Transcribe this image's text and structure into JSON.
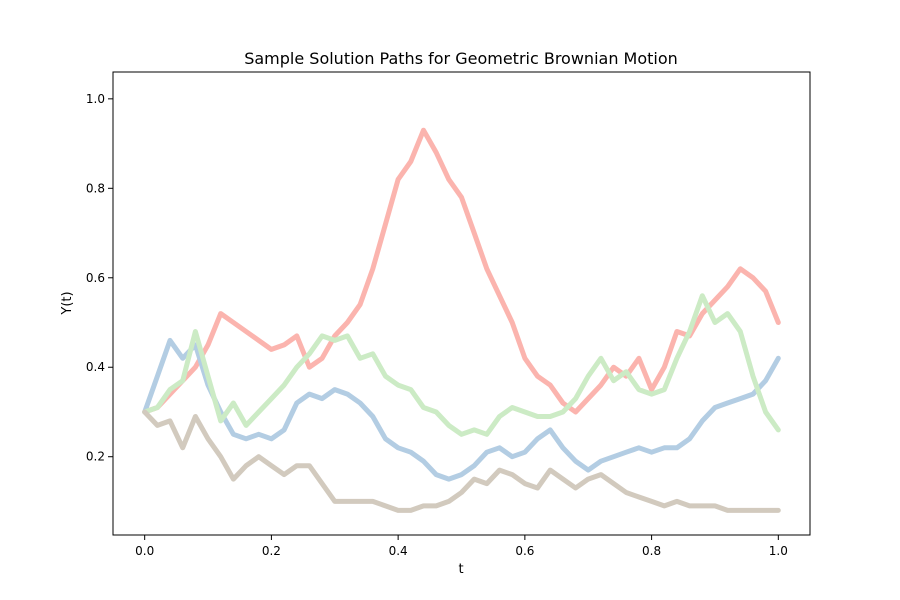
{
  "chart_data": {
    "type": "line",
    "title": "Sample Solution Paths for Geometric Brownian Motion",
    "xlabel": "t",
    "ylabel": "Y(t)",
    "xlim": [
      -0.05,
      1.05
    ],
    "ylim": [
      0.025,
      1.06
    ],
    "xticks": [
      "0.0",
      "0.2",
      "0.4",
      "0.6",
      "0.8",
      "1.0"
    ],
    "yticks": [
      "0.2",
      "0.4",
      "0.6",
      "0.8",
      "1.0"
    ],
    "grid": false,
    "x": [
      0.0,
      0.02,
      0.04,
      0.06,
      0.08,
      0.1,
      0.12,
      0.14,
      0.16,
      0.18,
      0.2,
      0.22,
      0.24,
      0.26,
      0.28,
      0.3,
      0.32,
      0.34,
      0.36,
      0.38,
      0.4,
      0.42,
      0.44,
      0.46,
      0.48,
      0.5,
      0.52,
      0.54,
      0.56,
      0.58,
      0.6,
      0.62,
      0.64,
      0.66,
      0.68,
      0.7,
      0.72,
      0.74,
      0.76,
      0.78,
      0.8,
      0.82,
      0.84,
      0.86,
      0.88,
      0.9,
      0.92,
      0.94,
      0.96,
      0.98,
      1.0
    ],
    "series": [
      {
        "color": "#fbb4ae",
        "values": [
          0.3,
          0.31,
          0.34,
          0.37,
          0.4,
          0.45,
          0.52,
          0.5,
          0.48,
          0.46,
          0.44,
          0.45,
          0.47,
          0.4,
          0.42,
          0.47,
          0.5,
          0.54,
          0.62,
          0.72,
          0.82,
          0.86,
          0.93,
          0.88,
          0.82,
          0.78,
          0.7,
          0.62,
          0.56,
          0.5,
          0.42,
          0.38,
          0.36,
          0.32,
          0.3,
          0.33,
          0.36,
          0.4,
          0.38,
          0.42,
          0.35,
          0.4,
          0.48,
          0.47,
          0.52,
          0.55,
          0.58,
          0.62,
          0.6,
          0.57,
          0.5
        ]
      },
      {
        "color": "#b3cde3",
        "values": [
          0.3,
          0.38,
          0.46,
          0.42,
          0.45,
          0.36,
          0.3,
          0.25,
          0.24,
          0.25,
          0.24,
          0.26,
          0.32,
          0.34,
          0.33,
          0.35,
          0.34,
          0.32,
          0.29,
          0.24,
          0.22,
          0.21,
          0.19,
          0.16,
          0.15,
          0.16,
          0.18,
          0.21,
          0.22,
          0.2,
          0.21,
          0.24,
          0.26,
          0.22,
          0.19,
          0.17,
          0.19,
          0.2,
          0.21,
          0.22,
          0.21,
          0.22,
          0.22,
          0.24,
          0.28,
          0.31,
          0.32,
          0.33,
          0.34,
          0.37,
          0.42
        ]
      },
      {
        "color": "#ccebc5",
        "values": [
          0.3,
          0.31,
          0.35,
          0.37,
          0.48,
          0.38,
          0.28,
          0.32,
          0.27,
          0.3,
          0.33,
          0.36,
          0.4,
          0.43,
          0.47,
          0.46,
          0.47,
          0.42,
          0.43,
          0.38,
          0.36,
          0.35,
          0.31,
          0.3,
          0.27,
          0.25,
          0.26,
          0.25,
          0.29,
          0.31,
          0.3,
          0.29,
          0.29,
          0.3,
          0.33,
          0.38,
          0.42,
          0.37,
          0.39,
          0.35,
          0.34,
          0.35,
          0.42,
          0.48,
          0.56,
          0.5,
          0.52,
          0.48,
          0.38,
          0.3,
          0.26
        ]
      },
      {
        "color": "#d2cabe",
        "values": [
          0.3,
          0.27,
          0.28,
          0.22,
          0.29,
          0.24,
          0.2,
          0.15,
          0.18,
          0.2,
          0.18,
          0.16,
          0.18,
          0.18,
          0.14,
          0.1,
          0.1,
          0.1,
          0.1,
          0.09,
          0.08,
          0.08,
          0.09,
          0.09,
          0.1,
          0.12,
          0.15,
          0.14,
          0.17,
          0.16,
          0.14,
          0.13,
          0.17,
          0.15,
          0.13,
          0.15,
          0.16,
          0.14,
          0.12,
          0.11,
          0.1,
          0.09,
          0.1,
          0.09,
          0.09,
          0.09,
          0.08,
          0.08,
          0.08,
          0.08,
          0.08
        ]
      }
    ]
  }
}
